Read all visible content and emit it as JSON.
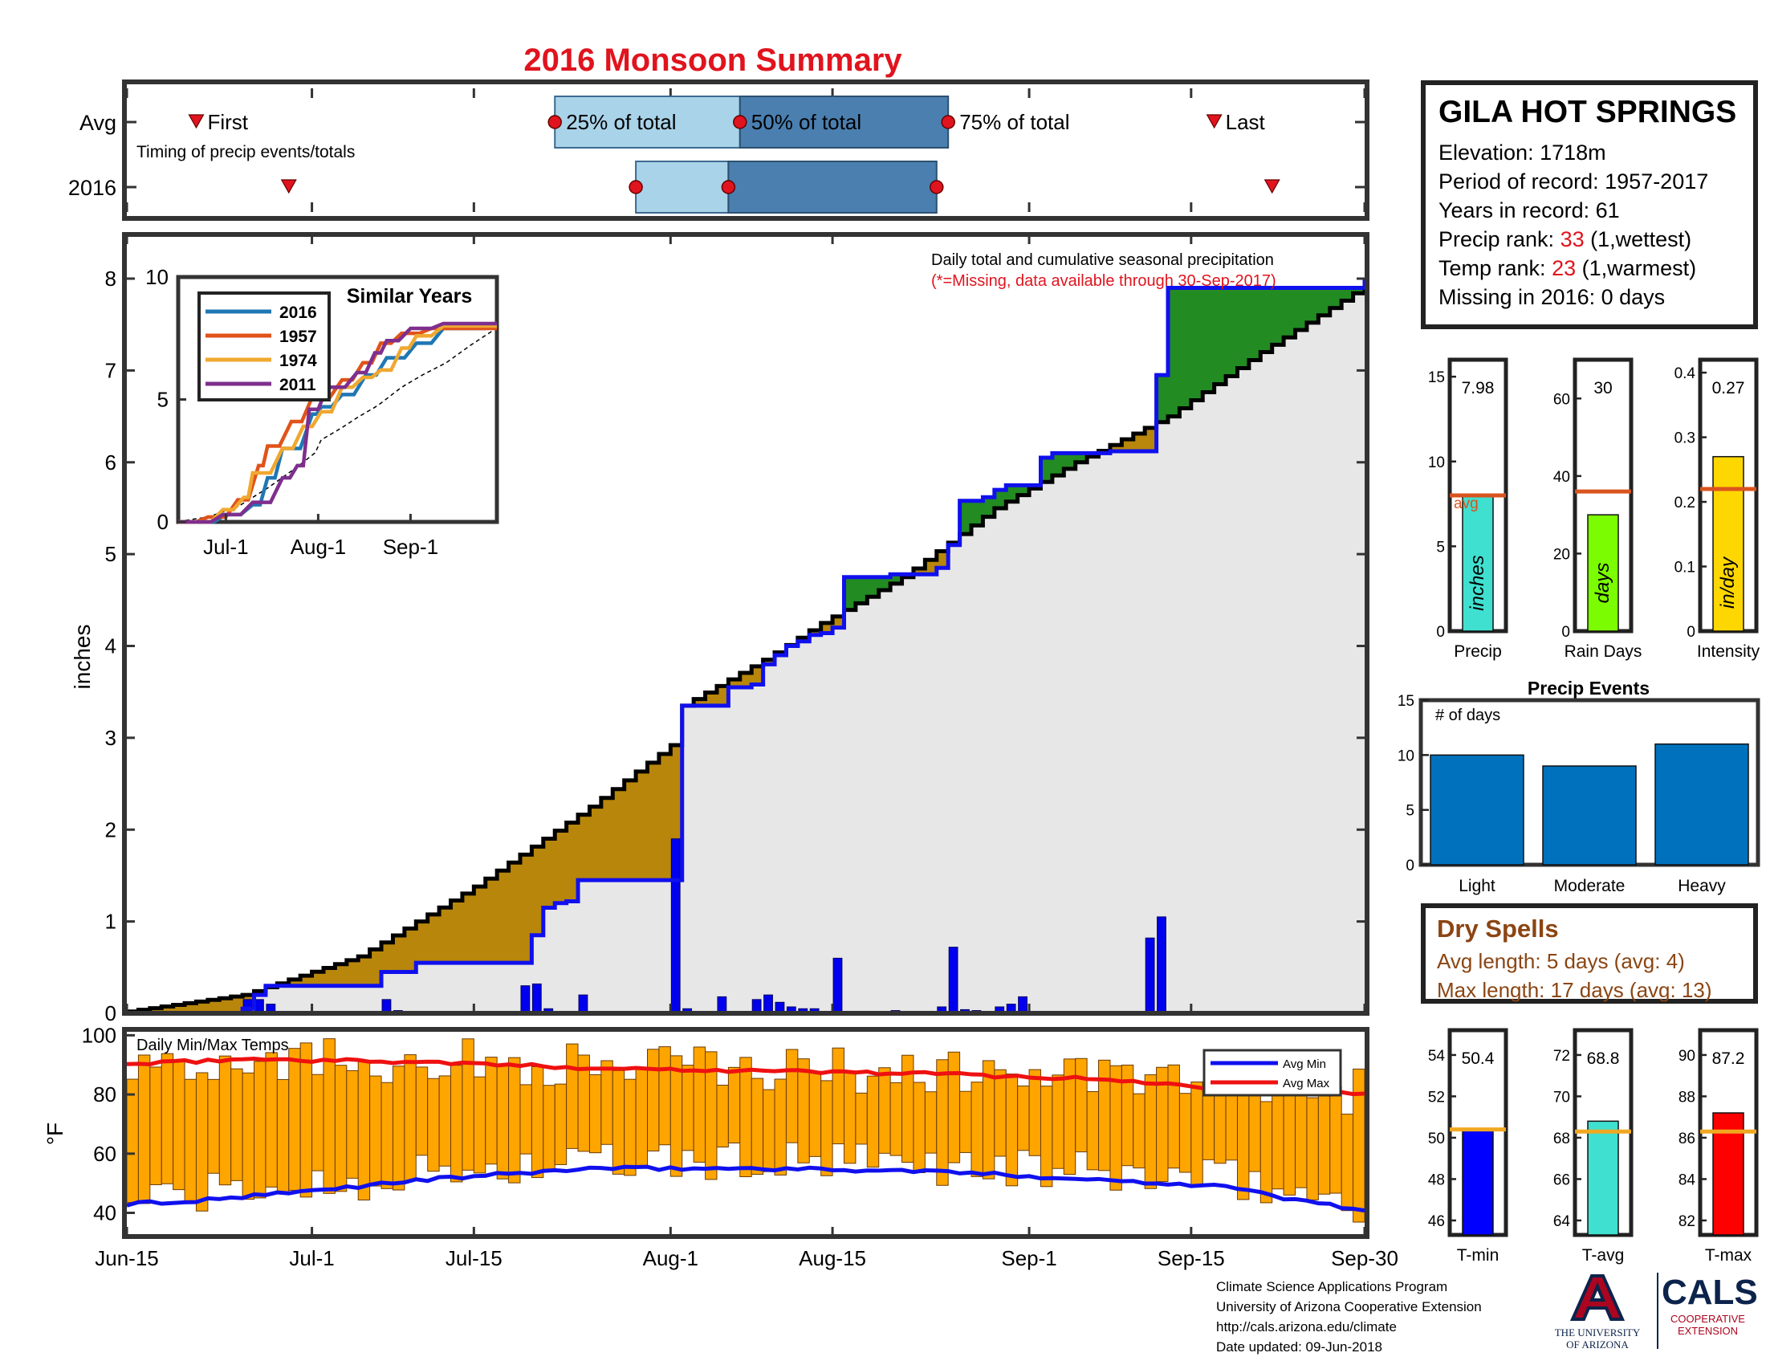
{
  "title": "2016 Monsoon Summary",
  "timing": {
    "row_labels": [
      "Avg",
      "2016"
    ],
    "note": "Timing of precip events/totals",
    "first_label": "First",
    "last_label": "Last",
    "q25_label": "25% of total",
    "q50_label": "50% of total",
    "q75_label": "75% of total",
    "avg": {
      "first": 6,
      "q25": 37,
      "q50": 53,
      "q75": 71,
      "last": 94
    },
    "y2016": {
      "first": 14,
      "q25": 44,
      "q50": 52,
      "q75": 70,
      "last": 99
    }
  },
  "station": {
    "name": "GILA HOT SPRINGS",
    "elevation_label": "Elevation:",
    "elevation": "1718m",
    "period_label": "Period of record:",
    "period": "1957-2017",
    "years_label": "Years in record:",
    "years": "61",
    "precip_rank_label": "Precip rank:",
    "precip_rank": "33",
    "precip_rank_note": "(1,wettest)",
    "temp_rank_label": "Temp rank:",
    "temp_rank": "23",
    "temp_rank_note": "(1,warmest)",
    "missing_label": "Missing in 2016:",
    "missing": "0 days"
  },
  "dates": [
    "Jun-15",
    "Jul-1",
    "Jul-15",
    "Aug-1",
    "Aug-15",
    "Sep-1",
    "Sep-15",
    "Sep-30"
  ],
  "chart_data": [
    {
      "type": "area",
      "name": "precip",
      "ylabel": "inches",
      "ylim": [
        0,
        8
      ],
      "yticks": [
        0,
        1,
        2,
        3,
        4,
        5,
        6,
        7,
        8
      ],
      "xlim": [
        0,
        107
      ],
      "annotation": "Daily total and cumulative seasonal precipitation",
      "annotation2": "(*=Missing, data available through 30-Sep-2017)",
      "avg_cum_knots": [
        [
          0,
          0.02
        ],
        [
          10,
          0.2
        ],
        [
          20,
          0.62
        ],
        [
          30,
          1.38
        ],
        [
          40,
          2.25
        ],
        [
          47,
          2.92
        ],
        [
          48,
          3.35
        ],
        [
          55,
          3.85
        ],
        [
          60,
          4.25
        ],
        [
          67,
          4.75
        ],
        [
          75,
          5.5
        ],
        [
          82,
          6.0
        ],
        [
          90,
          6.5
        ],
        [
          98,
          7.2
        ],
        [
          107,
          7.92
        ]
      ],
      "cum_2016_steps": [
        [
          0,
          0
        ],
        [
          10,
          0.05
        ],
        [
          11,
          0.2
        ],
        [
          12,
          0.3
        ],
        [
          21,
          0.3
        ],
        [
          22,
          0.45
        ],
        [
          25,
          0.55
        ],
        [
          34,
          0.55
        ],
        [
          35,
          0.85
        ],
        [
          36,
          1.15
        ],
        [
          37,
          1.2
        ],
        [
          38,
          1.22
        ],
        [
          39,
          1.45
        ],
        [
          47,
          1.45
        ],
        [
          48,
          3.35
        ],
        [
          51,
          3.35
        ],
        [
          52,
          3.55
        ],
        [
          54,
          3.58
        ],
        [
          55,
          3.8
        ],
        [
          56,
          3.9
        ],
        [
          57,
          4.0
        ],
        [
          58,
          4.05
        ],
        [
          59,
          4.12
        ],
        [
          60,
          4.14
        ],
        [
          61,
          4.2
        ],
        [
          62,
          4.75
        ],
        [
          66,
          4.78
        ],
        [
          70,
          4.85
        ],
        [
          71,
          5.1
        ],
        [
          72,
          5.58
        ],
        [
          74,
          5.62
        ],
        [
          75,
          5.7
        ],
        [
          76,
          5.75
        ],
        [
          79,
          6.05
        ],
        [
          80,
          6.1
        ],
        [
          85,
          6.12
        ],
        [
          88,
          6.12
        ],
        [
          89,
          6.95
        ],
        [
          90,
          7.9
        ],
        [
          107,
          8.0
        ]
      ],
      "daily_bars": [
        [
          10,
          0.15
        ],
        [
          11,
          0.15
        ],
        [
          12,
          0.1
        ],
        [
          22,
          0.15
        ],
        [
          23,
          0.03
        ],
        [
          34,
          0.3
        ],
        [
          35,
          0.32
        ],
        [
          36,
          0.05
        ],
        [
          38,
          0.02
        ],
        [
          39,
          0.2
        ],
        [
          47,
          1.9
        ],
        [
          48,
          0.05
        ],
        [
          51,
          0.18
        ],
        [
          54,
          0.15
        ],
        [
          55,
          0.2
        ],
        [
          56,
          0.12
        ],
        [
          57,
          0.07
        ],
        [
          58,
          0.05
        ],
        [
          59,
          0.05
        ],
        [
          61,
          0.6
        ],
        [
          66,
          0.03
        ],
        [
          70,
          0.07
        ],
        [
          71,
          0.72
        ],
        [
          72,
          0.04
        ],
        [
          73,
          0.03
        ],
        [
          75,
          0.07
        ],
        [
          76,
          0.1
        ],
        [
          77,
          0.18
        ],
        [
          88,
          0.82
        ],
        [
          89,
          1.05
        ]
      ],
      "colors": {
        "above": "#228b22",
        "below": "#b8860b",
        "avg_fill": "#e8e7e7",
        "cum_line": "#1010ee",
        "avg_line": "#000000",
        "bars": "#0000ee"
      }
    },
    {
      "type": "line",
      "name": "similar-years",
      "title": "Similar Years",
      "ylim": [
        0,
        10
      ],
      "yticks": [
        0,
        5,
        10
      ],
      "xticks": [
        "Jul-1",
        "Aug-1",
        "Sep-1"
      ],
      "series": [
        {
          "name": "2016",
          "color": "#1f77b4",
          "steps": [
            [
              0,
              0
            ],
            [
              16,
              0.3
            ],
            [
              25,
              0.7
            ],
            [
              30,
              1.8
            ],
            [
              35,
              3
            ],
            [
              45,
              4.4
            ],
            [
              48,
              4.7
            ],
            [
              55,
              5.2
            ],
            [
              63,
              6
            ],
            [
              70,
              6.7
            ],
            [
              80,
              7.3
            ],
            [
              89,
              7.9
            ],
            [
              107,
              8.1
            ]
          ]
        },
        {
          "name": "1957",
          "color": "#e0531a",
          "steps": [
            [
              0,
              0
            ],
            [
              10,
              0.2
            ],
            [
              20,
              0.9
            ],
            [
              27,
              2.3
            ],
            [
              30,
              3.1
            ],
            [
              38,
              4.1
            ],
            [
              45,
              5.1
            ],
            [
              55,
              5.8
            ],
            [
              62,
              6.5
            ],
            [
              68,
              7.3
            ],
            [
              75,
              7.7
            ],
            [
              85,
              7.9
            ],
            [
              107,
              7.9
            ]
          ]
        },
        {
          "name": "1974",
          "color": "#f0a830",
          "steps": [
            [
              0,
              0
            ],
            [
              15,
              0.5
            ],
            [
              22,
              1
            ],
            [
              25,
              2
            ],
            [
              35,
              3
            ],
            [
              42,
              3.9
            ],
            [
              48,
              4.5
            ],
            [
              55,
              5.5
            ],
            [
              62,
              5.9
            ],
            [
              68,
              6.2
            ],
            [
              75,
              7.1
            ],
            [
              80,
              7.6
            ],
            [
              89,
              8.0
            ],
            [
              107,
              8.0
            ]
          ]
        },
        {
          "name": "2011",
          "color": "#7e2f8e",
          "steps": [
            [
              0,
              0
            ],
            [
              15,
              0.3
            ],
            [
              25,
              0.8
            ],
            [
              35,
              1.8
            ],
            [
              40,
              2.3
            ],
            [
              44,
              4.6
            ],
            [
              50,
              5.5
            ],
            [
              60,
              6.1
            ],
            [
              66,
              6.9
            ],
            [
              70,
              7.4
            ],
            [
              78,
              7.9
            ],
            [
              89,
              8.1
            ],
            [
              107,
              8.1
            ]
          ]
        }
      ]
    },
    {
      "type": "bar",
      "name": "precip-summary",
      "panels": [
        {
          "label": "Precip",
          "value": 7.98,
          "value_label": "7.98",
          "unit": "inches",
          "avg": 8.0,
          "avg_label": "avg",
          "ylim": [
            0,
            16
          ],
          "yticks": [
            0,
            5,
            10,
            15
          ],
          "color": "#40e0d0"
        },
        {
          "label": "Rain Days",
          "value": 30,
          "value_label": "30",
          "unit": "days",
          "avg": 36,
          "ylim": [
            0,
            70
          ],
          "yticks": [
            0,
            20,
            40,
            60
          ],
          "color": "#7cfc00"
        },
        {
          "label": "Intensity",
          "value": 0.27,
          "value_label": "0.27",
          "unit": "in/day",
          "avg": 0.22,
          "ylim": [
            0,
            0.42
          ],
          "yticks": [
            0,
            0.1,
            0.2,
            0.3,
            0.4
          ],
          "color": "#ffd700"
        }
      ]
    },
    {
      "type": "bar",
      "name": "precip-events",
      "title": "Precip Events",
      "annotation": "# of days",
      "categories": [
        "Light",
        "Moderate",
        "Heavy"
      ],
      "values": [
        10,
        9,
        11
      ],
      "ylim": [
        0,
        15
      ],
      "yticks": [
        0,
        5,
        10,
        15
      ],
      "color": "#0072bd"
    },
    {
      "type": "bar",
      "name": "daily-temps",
      "title": "Daily Min/Max Temps",
      "ylabel": "°F",
      "ylim": [
        32,
        102
      ],
      "yticks": [
        40,
        60,
        80,
        100
      ],
      "legend": [
        "Avg Min",
        "Avg Max"
      ],
      "legend_position": "top-right",
      "avg_min_knots": [
        [
          0,
          43
        ],
        [
          6,
          44
        ],
        [
          15,
          47
        ],
        [
          25,
          51
        ],
        [
          40,
          55
        ],
        [
          55,
          55
        ],
        [
          70,
          54
        ],
        [
          85,
          51
        ],
        [
          95,
          49
        ],
        [
          100,
          45
        ],
        [
          107,
          41
        ]
      ],
      "avg_max_knots": [
        [
          0,
          90
        ],
        [
          10,
          92
        ],
        [
          25,
          91
        ],
        [
          40,
          89
        ],
        [
          55,
          88
        ],
        [
          70,
          87
        ],
        [
          85,
          85
        ],
        [
          95,
          82
        ],
        [
          107,
          80
        ]
      ],
      "colors": {
        "bars": "#ffa500",
        "avg_min": "#1010ee",
        "avg_max": "#ee1111"
      }
    },
    {
      "type": "bar",
      "name": "temp-summary",
      "panels": [
        {
          "label": "T-min",
          "value": 50.4,
          "value_label": "50.4",
          "avg": 50.4,
          "ylim": [
            45.3,
            55.2
          ],
          "yticks": [
            46,
            48,
            50,
            52,
            54
          ],
          "color": "#0000ff"
        },
        {
          "label": "T-avg",
          "value": 68.8,
          "value_label": "68.8",
          "avg": 68.3,
          "ylim": [
            63.3,
            73.2
          ],
          "yticks": [
            64,
            66,
            68,
            70,
            72
          ],
          "color": "#40e0d0"
        },
        {
          "label": "T-max",
          "value": 87.2,
          "value_label": "87.2",
          "avg": 86.3,
          "ylim": [
            81.3,
            91.2
          ],
          "yticks": [
            82,
            84,
            86,
            88,
            90
          ],
          "color": "#ff0000"
        }
      ]
    }
  ],
  "dry_spells": {
    "title": "Dry Spells",
    "avg_length": "Avg length: 5 days (avg: 4)",
    "max_length": "Max length: 17 days (avg: 13)"
  },
  "footer": {
    "line1": "Climate Science Applications Program",
    "line2": "University of Arizona Cooperative Extension",
    "line3": "http://cals.arizona.edu/climate",
    "line4": "Date updated: 09-Jun-2018"
  },
  "logos": {
    "ua_line1": "THE UNIVERSITY",
    "ua_line2": "OF ARIZONA",
    "cals": "CALS",
    "cals_line1": "COOPERATIVE",
    "cals_line2": "EXTENSION"
  }
}
